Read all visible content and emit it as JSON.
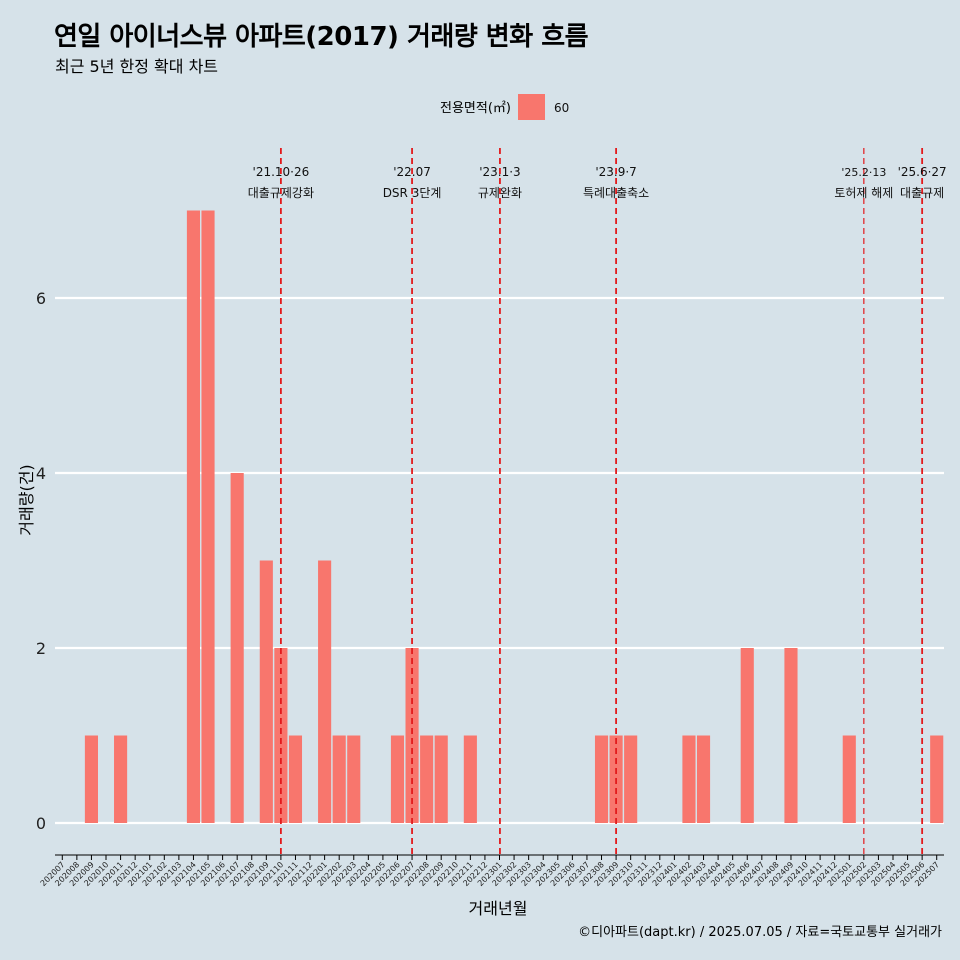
{
  "header": {
    "title": "연일 아이너스뷰 아파트(2017) 거래량 변화 흐름",
    "subtitle": "최근 5년 한정 확대 차트"
  },
  "legend": {
    "title": "전용면적(㎡)",
    "position": "top"
  },
  "caption": "©디아파트(dapt.kr) / 2025.07.05 / 자료=국토교통부 실거래가",
  "chart_data": {
    "type": "bar",
    "xlabel": "거래년월",
    "ylabel": "거래량(건)",
    "ylim": [
      -0.35,
      7.3
    ],
    "yticks": [
      0,
      2,
      4,
      6
    ],
    "grid": true,
    "categories": [
      "202007",
      "202008",
      "202009",
      "202010",
      "202011",
      "202012",
      "202101",
      "202102",
      "202103",
      "202104",
      "202105",
      "202106",
      "202107",
      "202108",
      "202109",
      "202110",
      "202111",
      "202112",
      "202201",
      "202202",
      "202203",
      "202204",
      "202205",
      "202206",
      "202207",
      "202208",
      "202209",
      "202210",
      "202211",
      "202212",
      "202301",
      "202302",
      "202303",
      "202304",
      "202305",
      "202306",
      "202307",
      "202308",
      "202309",
      "202310",
      "202311",
      "202312",
      "202401",
      "202402",
      "202403",
      "202404",
      "202405",
      "202406",
      "202407",
      "202408",
      "202409",
      "202410",
      "202411",
      "202412",
      "202501",
      "202502",
      "202503",
      "202504",
      "202505",
      "202506",
      "202507"
    ],
    "series": [
      {
        "name": "60",
        "color": "#f8766d",
        "values": [
          0,
          0,
          1,
          0,
          1,
          0,
          0,
          0,
          0,
          7,
          7,
          0,
          4,
          0,
          3,
          2,
          1,
          0,
          3,
          1,
          1,
          0,
          0,
          1,
          2,
          1,
          1,
          0,
          1,
          0,
          0,
          0,
          0,
          0,
          0,
          0,
          0,
          1,
          1,
          1,
          0,
          0,
          0,
          1,
          1,
          0,
          0,
          2,
          0,
          0,
          2,
          0,
          0,
          0,
          1,
          0,
          0,
          0,
          0,
          0,
          1
        ]
      }
    ],
    "annotations": [
      {
        "x": 15.0,
        "date": "'21.10·26",
        "label": "대출규제강화"
      },
      {
        "x": 24.0,
        "date": "'22.07",
        "label": "DSR 3단계"
      },
      {
        "x": 30.03,
        "date": "'23.1·3",
        "label": "규제완화"
      },
      {
        "x": 38.0,
        "date": "'23.9·7",
        "label": "특례대출축소"
      },
      {
        "x": 55.0,
        "date": "'25.2·13",
        "label": "토허제 해제"
      },
      {
        "x": 59.0,
        "date": "'25.6·27",
        "label": "대출규제"
      }
    ]
  }
}
